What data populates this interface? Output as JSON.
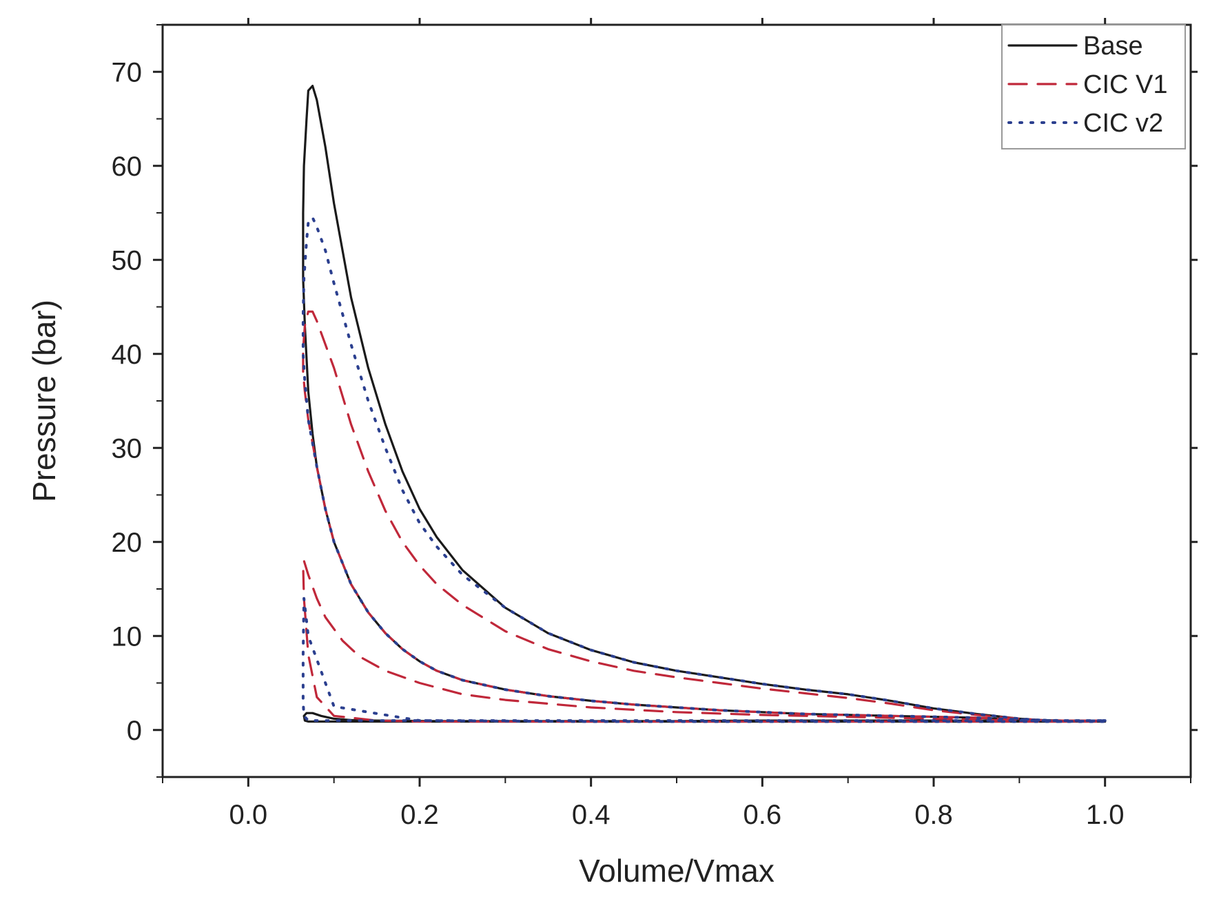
{
  "chart_data": {
    "type": "line",
    "title": "",
    "xlabel": "Volume/Vmax",
    "ylabel": "Pressure (bar)",
    "xlim": [
      -0.1,
      1.1
    ],
    "ylim": [
      -5,
      75
    ],
    "xticks": [
      0.0,
      0.2,
      0.4,
      0.6,
      0.8,
      1.0
    ],
    "xtick_labels": [
      "0.0",
      "0.2",
      "0.4",
      "0.6",
      "0.8",
      "1.0"
    ],
    "yticks": [
      0,
      10,
      20,
      30,
      40,
      50,
      60,
      70
    ],
    "ytick_labels": [
      "0",
      "10",
      "20",
      "30",
      "40",
      "50",
      "60",
      "70"
    ],
    "grid": false,
    "legend_position": "top-right",
    "series": [
      {
        "name": "Base",
        "color": "#1a1a1a",
        "style": "solid",
        "x": [
          1.0,
          0.95,
          0.9,
          0.85,
          0.8,
          0.75,
          0.7,
          0.65,
          0.6,
          0.55,
          0.5,
          0.45,
          0.4,
          0.35,
          0.3,
          0.25,
          0.22,
          0.2,
          0.18,
          0.16,
          0.14,
          0.12,
          0.1,
          0.09,
          0.08,
          0.075,
          0.07,
          0.068,
          0.065,
          0.064,
          0.064,
          0.066,
          0.07,
          0.075,
          0.08,
          0.09,
          0.1,
          0.12,
          0.14,
          0.16,
          0.18,
          0.2,
          0.22,
          0.25,
          0.3,
          0.35,
          0.4,
          0.45,
          0.5,
          0.55,
          0.6,
          0.65,
          0.7,
          0.75,
          0.8,
          0.85,
          0.9,
          0.95,
          1.0,
          0.9,
          0.8,
          0.7,
          0.6,
          0.5,
          0.4,
          0.3,
          0.22,
          0.15,
          0.12,
          0.1,
          0.085,
          0.075,
          0.068,
          0.065,
          0.066,
          0.07,
          0.08,
          0.1,
          0.12,
          0.15,
          0.2,
          0.3,
          0.4,
          0.5,
          0.6,
          0.7,
          0.8,
          0.9,
          1.0
        ],
        "y": [
          1.0,
          0.9,
          1.2,
          1.7,
          2.3,
          3.1,
          3.8,
          4.3,
          4.9,
          5.6,
          6.3,
          7.2,
          8.5,
          10.3,
          13.0,
          17.0,
          20.5,
          23.5,
          27.5,
          32.5,
          38.5,
          46.0,
          56.0,
          62.0,
          67.0,
          68.5,
          68.0,
          65.0,
          60.0,
          55.0,
          48.0,
          43.0,
          36.0,
          31.5,
          28.0,
          23.5,
          20.0,
          15.5,
          12.5,
          10.3,
          8.6,
          7.3,
          6.3,
          5.3,
          4.3,
          3.6,
          3.1,
          2.7,
          2.4,
          2.1,
          1.9,
          1.7,
          1.6,
          1.5,
          1.4,
          1.3,
          1.1,
          1.0,
          1.0,
          1.0,
          1.0,
          1.0,
          1.0,
          0.95,
          0.95,
          0.95,
          0.95,
          1.0,
          1.05,
          1.2,
          1.5,
          1.8,
          1.8,
          1.5,
          1.0,
          0.9,
          0.9,
          0.9,
          0.9,
          0.9,
          0.9,
          0.9,
          0.9,
          0.9,
          0.9,
          0.9,
          0.9,
          0.9,
          0.9
        ]
      },
      {
        "name": "CIC V1",
        "color": "#c0283a",
        "style": "dashed",
        "x": [
          1.0,
          0.95,
          0.9,
          0.85,
          0.8,
          0.75,
          0.7,
          0.65,
          0.6,
          0.55,
          0.5,
          0.45,
          0.4,
          0.35,
          0.3,
          0.25,
          0.22,
          0.2,
          0.18,
          0.16,
          0.14,
          0.12,
          0.1,
          0.09,
          0.08,
          0.075,
          0.07,
          0.066,
          0.064,
          0.064,
          0.066,
          0.07,
          0.075,
          0.08,
          0.09,
          0.1,
          0.12,
          0.14,
          0.16,
          0.18,
          0.2,
          0.22,
          0.25,
          0.3,
          0.35,
          0.4,
          0.45,
          0.5,
          0.55,
          0.6,
          0.65,
          0.7,
          0.75,
          0.8,
          0.85,
          0.9,
          0.95,
          1.0,
          0.9,
          0.8,
          0.7,
          0.6,
          0.5,
          0.4,
          0.3,
          0.25,
          0.2,
          0.16,
          0.13,
          0.11,
          0.09,
          0.08,
          0.07,
          0.065,
          0.064,
          0.065,
          0.07,
          0.08,
          0.1,
          0.15,
          0.2,
          0.3,
          0.4,
          0.5,
          0.6,
          0.7,
          0.8,
          0.9,
          1.0
        ],
        "y": [
          1.0,
          0.9,
          1.2,
          1.6,
          2.1,
          2.8,
          3.4,
          3.9,
          4.4,
          5.0,
          5.6,
          6.3,
          7.3,
          8.6,
          10.5,
          13.3,
          15.5,
          17.5,
          20.0,
          23.3,
          27.5,
          32.5,
          38.5,
          41.0,
          43.5,
          44.5,
          44.5,
          43.0,
          40.5,
          38.0,
          36.0,
          33.0,
          30.5,
          28.0,
          23.5,
          20.0,
          15.5,
          12.5,
          10.3,
          8.6,
          7.3,
          6.3,
          5.3,
          4.3,
          3.6,
          3.1,
          2.7,
          2.4,
          2.1,
          1.9,
          1.7,
          1.6,
          1.5,
          1.4,
          1.3,
          1.1,
          1.0,
          1.0,
          1.0,
          1.2,
          1.4,
          1.6,
          1.9,
          2.4,
          3.2,
          3.8,
          5.0,
          6.3,
          7.8,
          9.5,
          12.0,
          14.0,
          16.5,
          18.0,
          17.5,
          14.0,
          8.0,
          3.5,
          1.5,
          1.0,
          0.9,
          0.9,
          0.9,
          0.9,
          0.9,
          0.9,
          0.9,
          0.9,
          0.9
        ]
      },
      {
        "name": "CIC v2",
        "color": "#2b3f8f",
        "style": "dotted",
        "x": [
          1.0,
          0.95,
          0.9,
          0.85,
          0.8,
          0.75,
          0.7,
          0.65,
          0.6,
          0.55,
          0.5,
          0.45,
          0.4,
          0.35,
          0.3,
          0.25,
          0.22,
          0.2,
          0.18,
          0.16,
          0.14,
          0.12,
          0.1,
          0.09,
          0.08,
          0.075,
          0.07,
          0.068,
          0.065,
          0.064,
          0.064,
          0.066,
          0.07,
          0.075,
          0.08,
          0.09,
          0.1,
          0.12,
          0.14,
          0.16,
          0.18,
          0.2,
          0.22,
          0.25,
          0.3,
          0.35,
          0.4,
          0.45,
          0.5,
          0.55,
          0.6,
          0.65,
          0.7,
          0.75,
          0.8,
          0.85,
          0.9,
          0.95,
          1.0,
          0.9,
          0.8,
          0.7,
          0.6,
          0.5,
          0.4,
          0.3,
          0.2,
          0.15,
          0.1,
          0.08,
          0.07,
          0.065,
          0.064,
          0.064,
          0.065,
          0.07,
          0.1,
          0.2,
          0.4,
          0.6,
          0.8,
          1.0
        ],
        "y": [
          1.0,
          0.9,
          1.2,
          1.7,
          2.3,
          3.1,
          3.8,
          4.3,
          4.9,
          5.6,
          6.3,
          7.2,
          8.5,
          10.3,
          13.0,
          16.5,
          19.5,
          22.0,
          25.5,
          30.0,
          35.0,
          41.0,
          47.5,
          51.0,
          53.5,
          54.5,
          54.0,
          52.0,
          48.0,
          44.0,
          40.0,
          37.0,
          33.0,
          30.5,
          28.0,
          23.5,
          20.0,
          15.5,
          12.5,
          10.3,
          8.6,
          7.3,
          6.3,
          5.3,
          4.3,
          3.6,
          3.1,
          2.7,
          2.4,
          2.1,
          1.9,
          1.7,
          1.6,
          1.5,
          1.4,
          1.3,
          1.1,
          1.0,
          1.0,
          1.0,
          1.0,
          1.0,
          1.0,
          1.0,
          1.0,
          1.0,
          1.0,
          1.0,
          1.0,
          1.0,
          1.0,
          1.5,
          3.0,
          8.0,
          14.0,
          10.0,
          2.5,
          1.0,
          0.9,
          0.9,
          0.9,
          0.9
        ]
      }
    ]
  }
}
